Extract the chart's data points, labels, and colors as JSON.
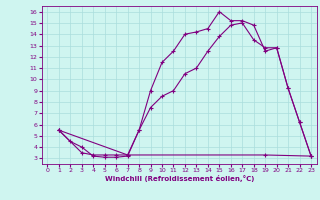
{
  "xlabel": "Windchill (Refroidissement éolien,°C)",
  "bg_color": "#cff5f0",
  "line_color": "#800080",
  "grid_color": "#aadddd",
  "xlim": [
    -0.5,
    23.5
  ],
  "ylim": [
    2.5,
    16.5
  ],
  "xticks": [
    0,
    1,
    2,
    3,
    4,
    5,
    6,
    7,
    8,
    9,
    10,
    11,
    12,
    13,
    14,
    15,
    16,
    17,
    18,
    19,
    20,
    21,
    22,
    23
  ],
  "yticks": [
    3,
    4,
    5,
    6,
    7,
    8,
    9,
    10,
    11,
    12,
    13,
    14,
    15,
    16
  ],
  "line1_x": [
    1,
    2,
    3,
    4,
    5,
    6,
    7,
    8,
    9,
    10,
    11,
    12,
    13,
    14,
    15,
    16,
    17,
    18,
    19,
    20,
    21,
    22,
    23
  ],
  "line1_y": [
    5.5,
    4.5,
    4.0,
    3.2,
    3.1,
    3.1,
    3.2,
    5.5,
    9.0,
    11.5,
    12.5,
    14.0,
    14.2,
    14.5,
    16.0,
    15.2,
    15.2,
    14.8,
    12.5,
    12.8,
    9.2,
    6.2,
    3.2
  ],
  "line2_x": [
    1,
    3,
    4,
    5,
    6,
    7,
    19,
    23
  ],
  "line2_y": [
    5.5,
    3.5,
    3.3,
    3.3,
    3.3,
    3.3,
    3.3,
    3.2
  ],
  "line3_x": [
    1,
    7,
    8,
    9,
    10,
    11,
    12,
    13,
    14,
    15,
    16,
    17,
    18,
    19,
    20,
    21,
    22,
    23
  ],
  "line3_y": [
    5.5,
    3.3,
    5.5,
    7.5,
    8.5,
    9.0,
    10.5,
    11.0,
    12.5,
    13.8,
    14.8,
    15.0,
    13.5,
    12.8,
    12.8,
    9.2,
    6.2,
    3.2
  ],
  "marker": "+"
}
